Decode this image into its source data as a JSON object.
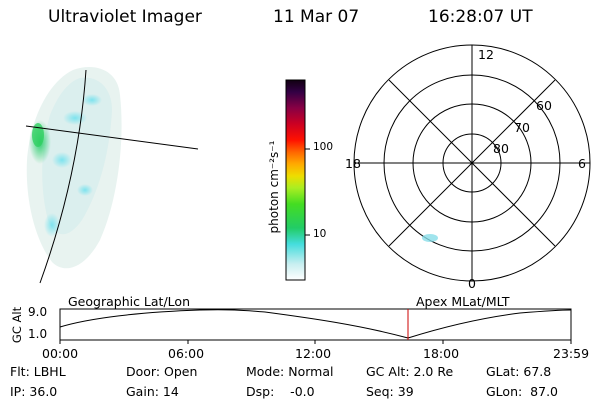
{
  "header": {
    "instrument": "Ultraviolet Imager",
    "date": "11 Mar 07",
    "time": "16:28:07 UT"
  },
  "colorbar": {
    "unit_label": "photon cm⁻²s⁻¹",
    "ticks": [
      "100",
      "10"
    ]
  },
  "polar": {
    "mlt_labels": {
      "top": "12",
      "left": "18",
      "right": "6",
      "bottom": "0"
    },
    "lat_labels": [
      "60",
      "70",
      "80"
    ]
  },
  "timeline": {
    "y_label": "GC Alt",
    "y_ticks": [
      "9.0",
      "1.0"
    ],
    "left_title": "Geographic Lat/Lon",
    "right_title": "Apex  MLat/MLT",
    "x_ticks": [
      "00:00",
      "06:00",
      "12:00",
      "18:00",
      "23:59"
    ],
    "marker_color": "#cc0000"
  },
  "info": {
    "row1": {
      "flt": "Flt: LBHL",
      "door": "Door: Open",
      "mode": "Mode: Normal",
      "gc_alt": "GC Alt: 2.0 Re",
      "glat": "GLat:  67.8"
    },
    "row2": {
      "ip": "IP: 36.0",
      "gain": "Gain: 14",
      "dsp": "Dsp:    -0.0",
      "seq": "Seq: 39",
      "glon": "GLon:  87.0"
    }
  }
}
